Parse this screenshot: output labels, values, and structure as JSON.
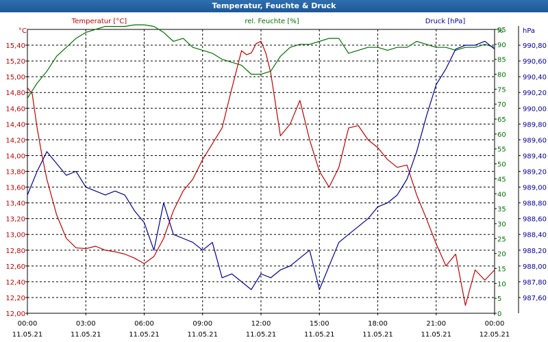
{
  "window": {
    "title": "Temperatur, Feuchte & Druck"
  },
  "colors": {
    "temperature": "#c00000",
    "humidity": "#007000",
    "pressure": "#000099",
    "titlebar": "#1f5c9c",
    "grid": "#000000"
  },
  "chart_data": {
    "type": "line",
    "title": "Temperatur, Feuchte & Druck",
    "x_ticks": [
      {
        "time": "00:00",
        "date": "11.05.21"
      },
      {
        "time": "03:00",
        "date": "11.05.21"
      },
      {
        "time": "06:00",
        "date": "11.05.21"
      },
      {
        "time": "09:00",
        "date": "11.05.21"
      },
      {
        "time": "12:00",
        "date": "11.05.21"
      },
      {
        "time": "15:00",
        "date": "11.05.21"
      },
      {
        "time": "18:00",
        "date": "11.05.21"
      },
      {
        "time": "21:00",
        "date": "11.05.21"
      },
      {
        "time": "00:00",
        "date": "12.05.21"
      }
    ],
    "x_range_hours": [
      0,
      24
    ],
    "grid": true,
    "axes": {
      "temperature": {
        "unit": "°C",
        "range": [
          12.0,
          15.6
        ],
        "ticks": [
          "12,00",
          "12,20",
          "12,40",
          "12,60",
          "12,80",
          "13,00",
          "13,20",
          "13,40",
          "13,60",
          "13,80",
          "14,00",
          "14,20",
          "14,40",
          "14,60",
          "14,80",
          "15,00",
          "15,20",
          "15,40"
        ]
      },
      "humidity": {
        "unit": "%",
        "range": [
          0,
          95
        ],
        "ticks": [
          "0",
          "5",
          "10",
          "15",
          "20",
          "25",
          "30",
          "35",
          "40",
          "45",
          "50",
          "55",
          "60",
          "65",
          "70",
          "75",
          "80",
          "85",
          "90",
          "95"
        ]
      },
      "pressure": {
        "unit": "hPa",
        "range": [
          987.4,
          991.0
        ],
        "ticks": [
          "987,60",
          "987,80",
          "988,00",
          "988,20",
          "988,40",
          "988,60",
          "988,80",
          "989,00",
          "989,20",
          "989,40",
          "989,60",
          "989,80",
          "990,00",
          "990,20",
          "990,40",
          "990,60",
          "990,80"
        ]
      }
    },
    "series": [
      {
        "name": "Temperatur [°C]",
        "axis": "temperature",
        "x": [
          0,
          0.25,
          0.5,
          0.75,
          1,
          1.5,
          2,
          2.5,
          3,
          3.5,
          4,
          4.5,
          5,
          5.5,
          6,
          6.5,
          7,
          7.5,
          8,
          8.5,
          9,
          9.5,
          10,
          10.5,
          11,
          11.25,
          11.5,
          11.75,
          12,
          12.25,
          12.5,
          13,
          13.5,
          14,
          14.5,
          15,
          15.5,
          16,
          16.5,
          17,
          17.5,
          18,
          18.5,
          19,
          19.5,
          20,
          20.5,
          21,
          21.5,
          22,
          22.5,
          23,
          23.5,
          24
        ],
        "values": [
          14.86,
          14.78,
          14.35,
          14.0,
          13.7,
          13.25,
          12.95,
          12.83,
          12.82,
          12.85,
          12.8,
          12.78,
          12.75,
          12.7,
          12.63,
          12.72,
          12.95,
          13.3,
          13.55,
          13.7,
          13.95,
          14.15,
          14.35,
          14.85,
          15.33,
          15.28,
          15.3,
          15.42,
          15.45,
          15.3,
          15.05,
          14.25,
          14.4,
          14.7,
          14.2,
          13.8,
          13.6,
          13.85,
          14.35,
          14.38,
          14.2,
          14.1,
          13.95,
          13.85,
          13.88,
          13.5,
          13.2,
          12.88,
          12.6,
          12.75,
          12.1,
          12.55,
          12.42,
          12.55
        ]
      },
      {
        "name": "rel. Feuchte [%]",
        "axis": "humidity",
        "x": [
          0,
          0.5,
          1,
          1.5,
          2,
          2.5,
          3,
          3.5,
          4,
          4.5,
          5,
          5.5,
          6,
          6.5,
          7,
          7.5,
          8,
          8.5,
          9,
          9.5,
          10,
          10.5,
          11,
          11.5,
          12,
          12.5,
          13,
          13.5,
          14,
          14.5,
          15,
          15.5,
          16,
          16.5,
          17,
          17.5,
          18,
          18.5,
          19,
          19.5,
          20,
          20.5,
          21,
          21.5,
          22,
          22.5,
          23,
          23.5,
          24
        ],
        "values": [
          72,
          77,
          81,
          86,
          89,
          92,
          94,
          95,
          96,
          96,
          96,
          96.5,
          96.5,
          96,
          94,
          91,
          92,
          89,
          88,
          87,
          85,
          84,
          83,
          80,
          80,
          81,
          86,
          89,
          90,
          90,
          91,
          92,
          92,
          87,
          88,
          89,
          89,
          88,
          89,
          89,
          91,
          90,
          89,
          89,
          88,
          89,
          89,
          90,
          89
        ]
      },
      {
        "name": "Druck [hPa]",
        "axis": "pressure",
        "x": [
          0,
          0.5,
          1,
          1.5,
          2,
          2.5,
          3,
          3.5,
          4,
          4.5,
          5,
          5.5,
          6,
          6.5,
          7,
          7.5,
          8,
          8.5,
          9,
          9.5,
          10,
          10.5,
          11,
          11.5,
          12,
          12.5,
          13,
          13.5,
          14,
          14.5,
          15,
          15.5,
          16,
          16.5,
          17,
          17.5,
          18,
          18.5,
          19,
          19.5,
          20,
          20.5,
          21,
          21.5,
          22,
          22.5,
          23,
          23.5,
          24
        ],
        "values": [
          988.9,
          989.2,
          989.45,
          989.3,
          989.15,
          989.2,
          989.0,
          988.95,
          988.9,
          988.95,
          988.9,
          988.7,
          988.55,
          988.2,
          988.8,
          988.4,
          988.35,
          988.3,
          988.2,
          988.3,
          987.85,
          987.9,
          987.8,
          987.7,
          987.9,
          987.85,
          987.95,
          988.0,
          988.1,
          988.2,
          987.7,
          988.0,
          988.3,
          988.4,
          988.5,
          988.6,
          988.75,
          988.8,
          988.9,
          989.1,
          989.45,
          989.9,
          990.3,
          990.5,
          990.75,
          990.8,
          990.8,
          990.85,
          990.75
        ]
      }
    ]
  }
}
